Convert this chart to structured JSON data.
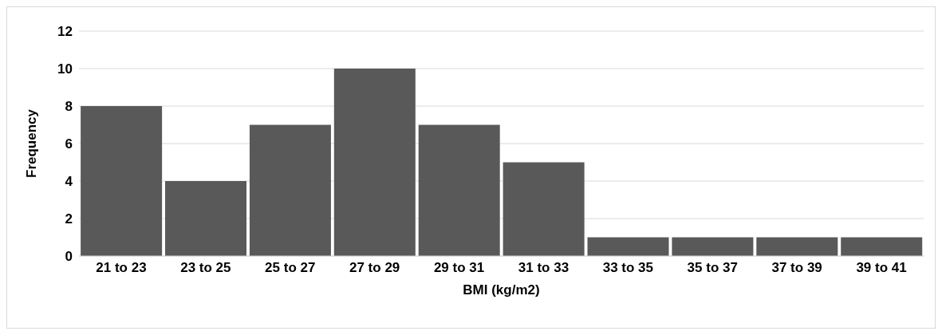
{
  "chart_data": {
    "type": "bar",
    "xlabel": "BMI (kg/m2)",
    "ylabel": "Frequency",
    "categories": [
      "21 to 23",
      "23 to 25",
      "25 to 27",
      "27 to 29",
      "29 to 31",
      "31 to 33",
      "33 to 35",
      "35 to 37",
      "37 to 39",
      "39 to 41"
    ],
    "values": [
      8,
      4,
      7,
      10,
      7,
      5,
      1,
      1,
      1,
      1
    ],
    "color": "#595959",
    "ylim": [
      0,
      12
    ],
    "yticks": [
      0,
      2,
      4,
      6,
      8,
      10,
      12
    ],
    "grid": "y"
  }
}
